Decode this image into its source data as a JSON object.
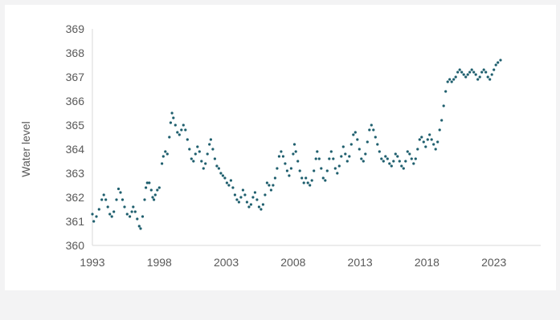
{
  "chart_data": {
    "type": "scatter",
    "title": "",
    "xlabel": "",
    "ylabel": "Water level",
    "xlim": [
      1993,
      2026.5
    ],
    "ylim": [
      360,
      369
    ],
    "x_ticks": [
      "1993",
      "1998",
      "2003",
      "2008",
      "2013",
      "2018",
      "2023"
    ],
    "y_ticks": [
      "360",
      "361",
      "362",
      "363",
      "364",
      "365",
      "366",
      "367",
      "368",
      "369"
    ],
    "grid": false,
    "legend": "none",
    "marker_color": "#1f5f6e",
    "series": [
      {
        "points": [
          [
            1993.0,
            361.3
          ],
          [
            1993.1,
            361.0
          ],
          [
            1993.3,
            361.2
          ],
          [
            1993.5,
            361.5
          ],
          [
            1993.7,
            361.9
          ],
          [
            1993.85,
            362.1
          ],
          [
            1994.0,
            361.9
          ],
          [
            1994.15,
            361.6
          ],
          [
            1994.3,
            361.3
          ],
          [
            1994.45,
            361.2
          ],
          [
            1994.6,
            361.4
          ],
          [
            1994.8,
            361.9
          ],
          [
            1994.95,
            362.35
          ],
          [
            1995.1,
            362.2
          ],
          [
            1995.25,
            361.9
          ],
          [
            1995.4,
            361.6
          ],
          [
            1995.6,
            361.3
          ],
          [
            1995.8,
            361.2
          ],
          [
            1995.95,
            361.4
          ],
          [
            1996.05,
            361.6
          ],
          [
            1996.2,
            361.4
          ],
          [
            1996.35,
            361.1
          ],
          [
            1996.5,
            360.8
          ],
          [
            1996.6,
            360.7
          ],
          [
            1996.75,
            361.2
          ],
          [
            1996.9,
            361.9
          ],
          [
            1997.0,
            362.4
          ],
          [
            1997.1,
            362.6
          ],
          [
            1997.25,
            362.6
          ],
          [
            1997.4,
            362.3
          ],
          [
            1997.5,
            362.0
          ],
          [
            1997.6,
            361.9
          ],
          [
            1997.7,
            362.1
          ],
          [
            1997.85,
            362.3
          ],
          [
            1998.0,
            362.4
          ],
          [
            1998.2,
            363.4
          ],
          [
            1998.3,
            363.7
          ],
          [
            1998.45,
            363.9
          ],
          [
            1998.6,
            363.8
          ],
          [
            1998.75,
            364.5
          ],
          [
            1998.85,
            365.1
          ],
          [
            1998.95,
            365.5
          ],
          [
            1999.05,
            365.3
          ],
          [
            1999.2,
            365.0
          ],
          [
            1999.35,
            364.7
          ],
          [
            1999.5,
            364.6
          ],
          [
            1999.65,
            364.8
          ],
          [
            1999.8,
            365.0
          ],
          [
            1999.95,
            364.8
          ],
          [
            2000.1,
            364.4
          ],
          [
            2000.25,
            364.0
          ],
          [
            2000.4,
            363.6
          ],
          [
            2000.55,
            363.5
          ],
          [
            2000.7,
            363.8
          ],
          [
            2000.85,
            364.1
          ],
          [
            2001.0,
            363.9
          ],
          [
            2001.15,
            363.5
          ],
          [
            2001.3,
            363.2
          ],
          [
            2001.45,
            363.4
          ],
          [
            2001.6,
            363.8
          ],
          [
            2001.75,
            364.2
          ],
          [
            2001.85,
            364.4
          ],
          [
            2002.0,
            364.0
          ],
          [
            2002.15,
            363.6
          ],
          [
            2002.3,
            363.3
          ],
          [
            2002.45,
            363.2
          ],
          [
            2002.6,
            363.0
          ],
          [
            2002.75,
            362.9
          ],
          [
            2002.9,
            362.8
          ],
          [
            2003.05,
            362.6
          ],
          [
            2003.2,
            362.5
          ],
          [
            2003.35,
            362.7
          ],
          [
            2003.5,
            362.4
          ],
          [
            2003.65,
            362.1
          ],
          [
            2003.8,
            361.9
          ],
          [
            2003.95,
            361.8
          ],
          [
            2004.1,
            362.0
          ],
          [
            2004.25,
            362.3
          ],
          [
            2004.4,
            362.1
          ],
          [
            2004.55,
            361.8
          ],
          [
            2004.7,
            361.6
          ],
          [
            2004.85,
            361.7
          ],
          [
            2005.0,
            362.0
          ],
          [
            2005.15,
            362.2
          ],
          [
            2005.3,
            361.9
          ],
          [
            2005.45,
            361.6
          ],
          [
            2005.6,
            361.5
          ],
          [
            2005.75,
            361.7
          ],
          [
            2005.9,
            362.1
          ],
          [
            2006.05,
            362.6
          ],
          [
            2006.2,
            362.5
          ],
          [
            2006.35,
            362.3
          ],
          [
            2006.5,
            362.5
          ],
          [
            2006.65,
            362.8
          ],
          [
            2006.8,
            363.2
          ],
          [
            2006.95,
            363.7
          ],
          [
            2007.1,
            363.9
          ],
          [
            2007.25,
            363.7
          ],
          [
            2007.4,
            363.4
          ],
          [
            2007.55,
            363.1
          ],
          [
            2007.7,
            362.9
          ],
          [
            2007.85,
            363.2
          ],
          [
            2008.0,
            363.8
          ],
          [
            2008.1,
            364.2
          ],
          [
            2008.2,
            363.9
          ],
          [
            2008.35,
            363.5
          ],
          [
            2008.5,
            363.1
          ],
          [
            2008.65,
            362.8
          ],
          [
            2008.8,
            362.6
          ],
          [
            2008.95,
            362.8
          ],
          [
            2009.1,
            362.6
          ],
          [
            2009.25,
            362.5
          ],
          [
            2009.4,
            362.7
          ],
          [
            2009.55,
            363.1
          ],
          [
            2009.7,
            363.6
          ],
          [
            2009.8,
            363.9
          ],
          [
            2009.95,
            363.6
          ],
          [
            2010.1,
            363.2
          ],
          [
            2010.25,
            362.8
          ],
          [
            2010.4,
            362.7
          ],
          [
            2010.55,
            363.1
          ],
          [
            2010.7,
            363.6
          ],
          [
            2010.85,
            363.9
          ],
          [
            2011.0,
            363.6
          ],
          [
            2011.15,
            363.2
          ],
          [
            2011.3,
            363.0
          ],
          [
            2011.45,
            363.3
          ],
          [
            2011.6,
            363.7
          ],
          [
            2011.75,
            364.1
          ],
          [
            2011.9,
            363.8
          ],
          [
            2012.05,
            363.5
          ],
          [
            2012.2,
            363.7
          ],
          [
            2012.35,
            364.2
          ],
          [
            2012.5,
            364.6
          ],
          [
            2012.65,
            364.7
          ],
          [
            2012.8,
            364.4
          ],
          [
            2012.95,
            364.0
          ],
          [
            2013.1,
            363.6
          ],
          [
            2013.25,
            363.5
          ],
          [
            2013.4,
            363.8
          ],
          [
            2013.55,
            364.3
          ],
          [
            2013.7,
            364.8
          ],
          [
            2013.85,
            365.0
          ],
          [
            2014.0,
            364.8
          ],
          [
            2014.15,
            364.5
          ],
          [
            2014.3,
            364.2
          ],
          [
            2014.45,
            363.9
          ],
          [
            2014.6,
            363.6
          ],
          [
            2014.75,
            363.5
          ],
          [
            2014.9,
            363.7
          ],
          [
            2015.05,
            363.6
          ],
          [
            2015.2,
            363.4
          ],
          [
            2015.35,
            363.3
          ],
          [
            2015.5,
            363.5
          ],
          [
            2015.65,
            363.8
          ],
          [
            2015.8,
            363.7
          ],
          [
            2015.95,
            363.5
          ],
          [
            2016.1,
            363.3
          ],
          [
            2016.25,
            363.2
          ],
          [
            2016.4,
            363.5
          ],
          [
            2016.55,
            363.9
          ],
          [
            2016.7,
            363.8
          ],
          [
            2016.85,
            363.6
          ],
          [
            2017.0,
            363.4
          ],
          [
            2017.15,
            363.6
          ],
          [
            2017.3,
            364.0
          ],
          [
            2017.45,
            364.4
          ],
          [
            2017.6,
            364.5
          ],
          [
            2017.75,
            364.3
          ],
          [
            2017.9,
            364.1
          ],
          [
            2018.05,
            364.4
          ],
          [
            2018.2,
            364.6
          ],
          [
            2018.35,
            364.4
          ],
          [
            2018.5,
            364.2
          ],
          [
            2018.65,
            364.0
          ],
          [
            2018.8,
            364.3
          ],
          [
            2018.95,
            364.8
          ],
          [
            2019.1,
            365.2
          ],
          [
            2019.25,
            365.8
          ],
          [
            2019.4,
            366.4
          ],
          [
            2019.55,
            366.8
          ],
          [
            2019.7,
            366.9
          ],
          [
            2019.85,
            366.8
          ],
          [
            2020.0,
            366.9
          ],
          [
            2020.15,
            367.0
          ],
          [
            2020.3,
            367.2
          ],
          [
            2020.45,
            367.3
          ],
          [
            2020.6,
            367.2
          ],
          [
            2020.75,
            367.1
          ],
          [
            2020.9,
            367.0
          ],
          [
            2021.05,
            367.1
          ],
          [
            2021.2,
            367.2
          ],
          [
            2021.35,
            367.3
          ],
          [
            2021.5,
            367.2
          ],
          [
            2021.65,
            367.1
          ],
          [
            2021.8,
            366.9
          ],
          [
            2021.95,
            367.0
          ],
          [
            2022.1,
            367.2
          ],
          [
            2022.25,
            367.3
          ],
          [
            2022.4,
            367.2
          ],
          [
            2022.55,
            367.0
          ],
          [
            2022.7,
            366.9
          ],
          [
            2022.85,
            367.1
          ],
          [
            2023.0,
            367.3
          ],
          [
            2023.15,
            367.5
          ],
          [
            2023.3,
            367.6
          ],
          [
            2023.5,
            367.7
          ]
        ]
      }
    ]
  }
}
